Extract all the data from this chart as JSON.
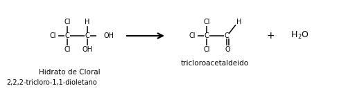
{
  "bg_color": "#ffffff",
  "text_color": "#000000",
  "line_color": "#000000",
  "label1": "Hidrato de Cloral",
  "label2": "2,2,2-tricloro-1,1-dioletano",
  "label3": "tricloroacetaldeido",
  "font_size_atom": 7.0,
  "font_size_label": 7.5,
  "font_size_plus": 10,
  "font_size_water": 9
}
